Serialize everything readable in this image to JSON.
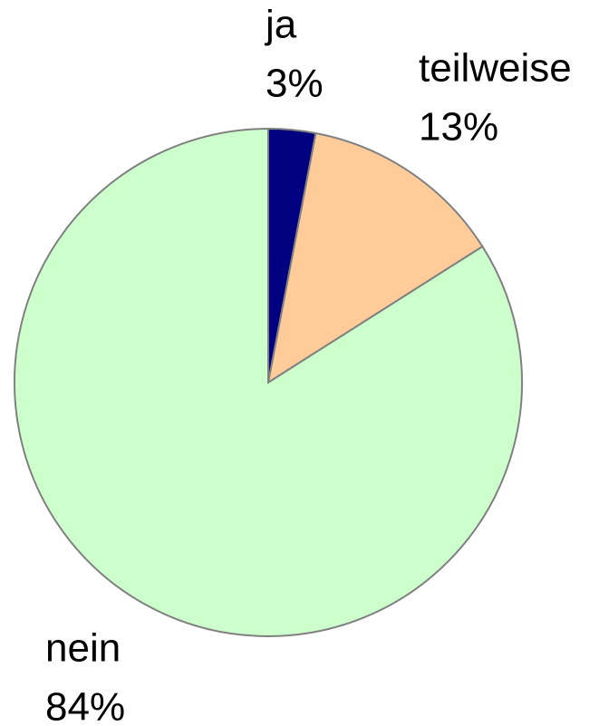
{
  "chart_data": {
    "type": "pie",
    "categories": [
      "ja",
      "teilweise",
      "nein"
    ],
    "values": [
      3,
      13,
      84
    ],
    "value_labels": [
      "3%",
      "13%",
      "84%"
    ],
    "colors": [
      "#000080",
      "#ffcc99",
      "#ccffcc"
    ]
  }
}
